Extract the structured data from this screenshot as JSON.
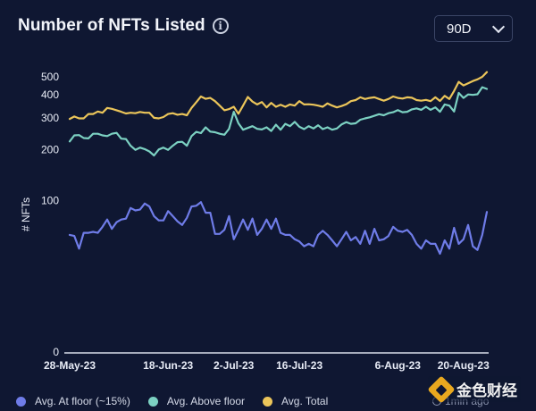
{
  "header": {
    "title": "Number of NFTs Listed",
    "info_icon": "info-icon",
    "range_value": "90D"
  },
  "legend": {
    "items": [
      {
        "label": "Avg. At floor (~15%)",
        "color": "#6f7ce8"
      },
      {
        "label": "Avg. Above floor",
        "color": "#7cd1c2"
      },
      {
        "label": "Avg. Total",
        "color": "#ebc55a"
      }
    ]
  },
  "footer": {
    "updated": "1min ago",
    "watermark": "金色财经"
  },
  "chart_data": {
    "type": "line",
    "title": "Number of NFTs Listed",
    "ylabel": "# NFTs",
    "xlabel": "",
    "yscale": "log",
    "ylim": [
      0,
      500
    ],
    "yticks": [
      0,
      100,
      200,
      300,
      400,
      500
    ],
    "ytick_labels": [
      "0",
      "100",
      "200",
      "300",
      "400",
      "500"
    ],
    "xtick_labels": [
      "28-May-23",
      "18-Jun-23",
      "2-Jul-23",
      "16-Jul-23",
      "6-Aug-23",
      "20-Aug-23"
    ],
    "x": [
      "2023-05-28",
      "2023-05-29",
      "2023-05-30",
      "2023-05-31",
      "2023-06-01",
      "2023-06-02",
      "2023-06-03",
      "2023-06-04",
      "2023-06-05",
      "2023-06-06",
      "2023-06-07",
      "2023-06-08",
      "2023-06-09",
      "2023-06-10",
      "2023-06-11",
      "2023-06-12",
      "2023-06-13",
      "2023-06-14",
      "2023-06-15",
      "2023-06-16",
      "2023-06-17",
      "2023-06-18",
      "2023-06-19",
      "2023-06-20",
      "2023-06-21",
      "2023-06-22",
      "2023-06-23",
      "2023-06-24",
      "2023-06-25",
      "2023-06-26",
      "2023-06-27",
      "2023-06-28",
      "2023-06-29",
      "2023-06-30",
      "2023-07-01",
      "2023-07-02",
      "2023-07-03",
      "2023-07-04",
      "2023-07-05",
      "2023-07-06",
      "2023-07-07",
      "2023-07-08",
      "2023-07-09",
      "2023-07-10",
      "2023-07-11",
      "2023-07-12",
      "2023-07-13",
      "2023-07-14",
      "2023-07-15",
      "2023-07-16",
      "2023-07-17",
      "2023-07-18",
      "2023-07-19",
      "2023-07-20",
      "2023-07-21",
      "2023-07-22",
      "2023-07-23",
      "2023-07-24",
      "2023-07-25",
      "2023-07-26",
      "2023-07-27",
      "2023-07-28",
      "2023-07-29",
      "2023-07-30",
      "2023-07-31",
      "2023-08-01",
      "2023-08-02",
      "2023-08-03",
      "2023-08-04",
      "2023-08-05",
      "2023-08-06",
      "2023-08-07",
      "2023-08-08",
      "2023-08-09",
      "2023-08-10",
      "2023-08-11",
      "2023-08-12",
      "2023-08-13",
      "2023-08-14",
      "2023-08-15",
      "2023-08-16",
      "2023-08-17",
      "2023-08-18",
      "2023-08-19",
      "2023-08-20",
      "2023-08-21",
      "2023-08-22",
      "2023-08-23",
      "2023-08-24",
      "2023-08-25"
    ],
    "series": [
      {
        "name": "Avg. At floor (~15%)",
        "color": "#6f7ce8",
        "values": [
          60,
          59,
          48,
          62,
          62,
          63,
          62,
          68,
          76,
          66,
          73,
          76,
          77,
          90,
          87,
          88,
          96,
          92,
          80,
          75,
          75,
          86,
          80,
          74,
          70,
          78,
          92,
          93,
          98,
          84,
          84,
          61,
          61,
          65,
          80,
          56,
          65,
          76,
          65,
          77,
          60,
          66,
          76,
          66,
          77,
          62,
          60,
          60,
          56,
          54,
          50,
          52,
          50,
          60,
          64,
          60,
          55,
          50,
          56,
          63,
          55,
          58,
          52,
          64,
          52,
          66,
          55,
          56,
          59,
          68,
          64,
          63,
          65,
          60,
          52,
          48,
          55,
          52,
          52,
          44,
          55,
          48,
          67,
          52,
          56,
          70,
          50,
          47,
          60,
          85
        ]
      },
      {
        "name": "Avg. Above floor",
        "color": "#7cd1c2",
        "values": [
          222,
          240,
          241,
          232,
          231,
          245,
          245,
          240,
          238,
          245,
          248,
          230,
          229,
          210,
          199,
          205,
          201,
          195,
          185,
          200,
          205,
          199,
          210,
          220,
          221,
          210,
          238,
          251,
          247,
          266,
          252,
          250,
          245,
          242,
          261,
          324,
          280,
          258,
          264,
          270,
          261,
          259,
          266,
          254,
          275,
          258,
          278,
          270,
          285,
          268,
          260,
          270,
          262,
          273,
          260,
          266,
          258,
          262,
          276,
          284,
          278,
          280,
          293,
          298,
          302,
          308,
          314,
          310,
          318,
          322,
          331,
          322,
          324,
          334,
          338,
          332,
          345,
          332,
          342,
          324,
          355,
          350,
          325,
          410,
          385,
          402,
          400,
          403,
          440,
          431
        ]
      },
      {
        "name": "Avg. Total",
        "color": "#ebc55a",
        "values": [
          296,
          305,
          298,
          298,
          315,
          315,
          325,
          320,
          340,
          336,
          330,
          324,
          317,
          320,
          318,
          323,
          320,
          320,
          300,
          298,
          303,
          315,
          318,
          312,
          315,
          310,
          340,
          365,
          392,
          381,
          385,
          370,
          350,
          330,
          335,
          345,
          316,
          350,
          390,
          368,
          355,
          366,
          342,
          362,
          345,
          354,
          345,
          355,
          350,
          370,
          355,
          356,
          354,
          350,
          345,
          360,
          350,
          342,
          348,
          356,
          370,
          375,
          388,
          380,
          385,
          388,
          380,
          372,
          380,
          392,
          385,
          382,
          388,
          386,
          375,
          372,
          376,
          370,
          388,
          371,
          395,
          380,
          420,
          470,
          450,
          462,
          475,
          485,
          500,
          530
        ]
      }
    ]
  }
}
